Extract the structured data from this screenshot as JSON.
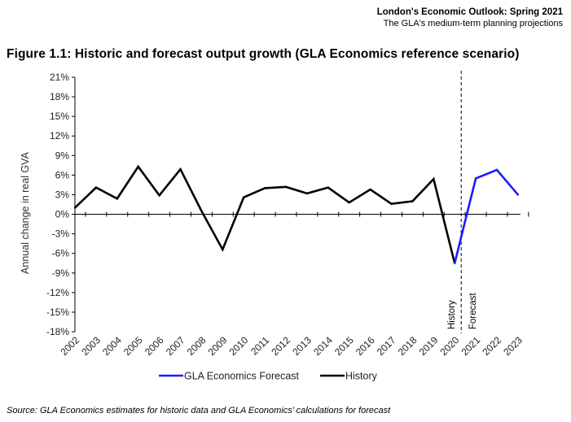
{
  "header": {
    "title": "London's Economic Outlook: Spring 2021",
    "subtitle": "The GLA's medium-term planning projections"
  },
  "figure_title": "Figure 1.1: Historic and forecast output growth (GLA Economics reference scenario)",
  "source": "Source: GLA Economics estimates for historic data and GLA Economics’ calculations for forecast",
  "chart_data": {
    "type": "line",
    "title": "Figure 1.1: Historic and forecast output growth (GLA Economics reference scenario)",
    "xlabel": "",
    "ylabel": "Annual change in real GVA",
    "ylim": [
      -18,
      21
    ],
    "yticks": [
      21,
      18,
      15,
      12,
      9,
      6,
      3,
      0,
      -3,
      -6,
      -9,
      -12,
      -15,
      -18
    ],
    "ytick_labels": [
      "21%",
      "18%",
      "15%",
      "12%",
      "9%",
      "6%",
      "3%",
      "0%",
      "-3%",
      "-6%",
      "-9%",
      "-12%",
      "-15%",
      "-18%"
    ],
    "categories": [
      "2002",
      "2003",
      "2004",
      "2005",
      "2006",
      "2007",
      "2008",
      "2009",
      "2010",
      "2011",
      "2012",
      "2013",
      "2014",
      "2015",
      "2016",
      "2017",
      "2018",
      "2019",
      "2020",
      "2021",
      "2022",
      "2023"
    ],
    "series": [
      {
        "name": "GLA Economics Forecast",
        "color": "#1a1aff",
        "x": [
          "2020",
          "2021",
          "2022",
          "2023"
        ],
        "values": [
          -7.5,
          5.5,
          6.8,
          3.0
        ]
      },
      {
        "name": "History",
        "color": "#000000",
        "x": [
          "2002",
          "2003",
          "2004",
          "2005",
          "2006",
          "2007",
          "2008",
          "2009",
          "2010",
          "2011",
          "2012",
          "2013",
          "2014",
          "2015",
          "2016",
          "2017",
          "2018",
          "2019",
          "2020"
        ],
        "values": [
          1.0,
          4.1,
          2.4,
          7.3,
          2.9,
          6.9,
          0.5,
          -5.4,
          2.6,
          4.0,
          4.2,
          3.2,
          4.1,
          1.8,
          3.8,
          1.6,
          2.0,
          5.4,
          -7.5
        ]
      }
    ],
    "annotations": [
      {
        "label": "History",
        "x": "2020",
        "side": "left"
      },
      {
        "label": "Forecast",
        "x": "2020",
        "side": "right"
      }
    ],
    "divider_at": "2020",
    "legend_position": "bottom",
    "grid": false
  }
}
